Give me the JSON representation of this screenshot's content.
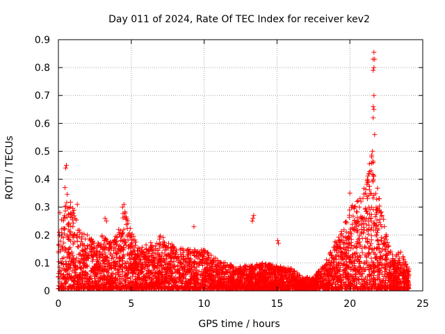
{
  "chart_data": {
    "type": "scatter",
    "title": "Day 011 of 2024, Rate Of TEC Index for receiver kev2",
    "xlabel": "GPS time / hours",
    "ylabel": "ROTI / TECUs",
    "xlim": [
      0,
      25
    ],
    "ylim": [
      0,
      0.9
    ],
    "xticks": [
      "0",
      "5",
      "10",
      "15",
      "20",
      "25"
    ],
    "yticks": [
      "0",
      "0.1",
      "0.2",
      "0.3",
      "0.4",
      "0.5",
      "0.6",
      "0.7",
      "0.8",
      "0.9"
    ],
    "grid": true,
    "marker": "+",
    "marker_color": "#ff0000",
    "envelope": {
      "x": [
        0,
        0.3,
        0.6,
        1.0,
        1.5,
        2.0,
        2.5,
        3.0,
        3.5,
        4.0,
        4.5,
        5.0,
        5.5,
        6.0,
        7.0,
        8.0,
        9.0,
        10.0,
        11.0,
        12.0,
        13.0,
        14.0,
        15.0,
        16.0,
        16.5,
        17.0,
        17.5,
        18.0,
        18.5,
        19.0,
        19.5,
        20.0,
        20.5,
        21.0,
        21.5,
        22.0,
        22.5,
        23.0,
        23.5,
        24.0
      ],
      "y": [
        0.2,
        0.28,
        0.35,
        0.3,
        0.22,
        0.2,
        0.18,
        0.2,
        0.18,
        0.2,
        0.3,
        0.22,
        0.15,
        0.17,
        0.2,
        0.16,
        0.15,
        0.15,
        0.11,
        0.09,
        0.09,
        0.1,
        0.09,
        0.08,
        0.06,
        0.05,
        0.05,
        0.08,
        0.12,
        0.18,
        0.22,
        0.3,
        0.32,
        0.38,
        0.5,
        0.35,
        0.2,
        0.12,
        0.15,
        0.08
      ]
    },
    "highlights": [
      {
        "x": 0.5,
        "y": 0.44
      },
      {
        "x": 0.55,
        "y": 0.45
      },
      {
        "x": 0.45,
        "y": 0.37
      },
      {
        "x": 9.3,
        "y": 0.23
      },
      {
        "x": 13.35,
        "y": 0.26
      },
      {
        "x": 13.4,
        "y": 0.27
      },
      {
        "x": 13.3,
        "y": 0.25
      },
      {
        "x": 15.05,
        "y": 0.18
      },
      {
        "x": 15.1,
        "y": 0.17
      },
      {
        "x": 21.65,
        "y": 0.855
      },
      {
        "x": 21.6,
        "y": 0.83
      },
      {
        "x": 21.7,
        "y": 0.83
      },
      {
        "x": 21.65,
        "y": 0.8
      },
      {
        "x": 21.6,
        "y": 0.79
      },
      {
        "x": 21.65,
        "y": 0.7
      },
      {
        "x": 21.6,
        "y": 0.66
      },
      {
        "x": 21.65,
        "y": 0.65
      },
      {
        "x": 21.6,
        "y": 0.62
      },
      {
        "x": 21.7,
        "y": 0.56
      },
      {
        "x": 21.55,
        "y": 0.5
      },
      {
        "x": 21.5,
        "y": 0.48
      },
      {
        "x": 21.6,
        "y": 0.46
      },
      {
        "x": 21.45,
        "y": 0.43
      },
      {
        "x": 21.3,
        "y": 0.42
      },
      {
        "x": 21.2,
        "y": 0.4
      },
      {
        "x": 21.6,
        "y": 0.4
      },
      {
        "x": 20.0,
        "y": 0.35
      },
      {
        "x": 20.5,
        "y": 0.32
      },
      {
        "x": 22.1,
        "y": 0.28
      },
      {
        "x": 22.2,
        "y": 0.27
      },
      {
        "x": 4.5,
        "y": 0.31
      },
      {
        "x": 4.4,
        "y": 0.3
      },
      {
        "x": 3.2,
        "y": 0.26
      },
      {
        "x": 3.3,
        "y": 0.25
      },
      {
        "x": 1.3,
        "y": 0.31
      },
      {
        "x": 0.1,
        "y": 0.28
      }
    ]
  }
}
